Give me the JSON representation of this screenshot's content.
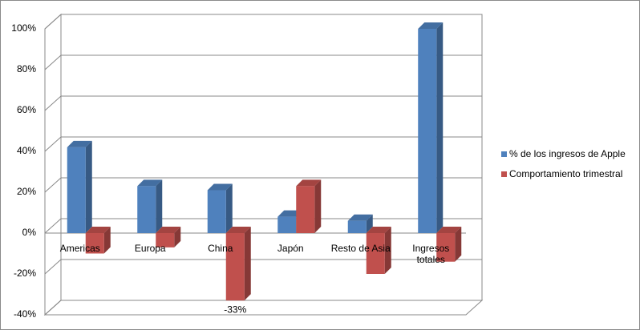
{
  "chart_data": {
    "type": "bar3d",
    "categories": [
      "Americas",
      "Europa",
      "China",
      "Japón",
      "Resto de Asia",
      "Ingresos totales"
    ],
    "series": [
      {
        "name": "% de los ingresos de Apple",
        "color": "#4f81bd",
        "values": [
          42,
          23,
          21,
          8,
          6,
          100
        ]
      },
      {
        "name": "Comportamiento trimestral",
        "color": "#c0504d",
        "values": [
          -10,
          -7,
          -33,
          23,
          -20,
          -14
        ],
        "value_labels": [
          null,
          null,
          "-33%",
          null,
          null,
          null
        ]
      }
    ],
    "ylim": [
      -40,
      100
    ],
    "yticks": [
      {
        "value": -40,
        "label": "-40%"
      },
      {
        "value": -20,
        "label": "-20%"
      },
      {
        "value": 0,
        "label": "0%"
      },
      {
        "value": 20,
        "label": "20%"
      },
      {
        "value": 40,
        "label": "40%"
      },
      {
        "value": 60,
        "label": "60%"
      },
      {
        "value": 80,
        "label": "80%"
      },
      {
        "value": 100,
        "label": "100%"
      }
    ],
    "grid": true,
    "legend": "right"
  }
}
